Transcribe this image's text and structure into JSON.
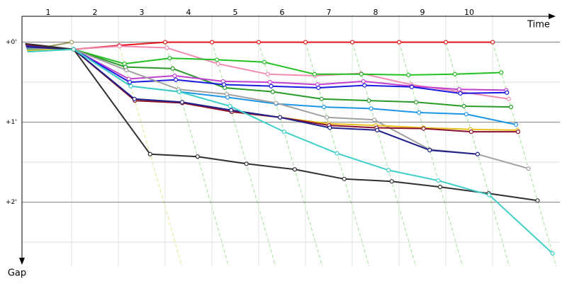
{
  "chart_data": {
    "type": "gap-line",
    "x_title": "Time",
    "y_title": "Gap",
    "x": [
      0,
      1,
      2,
      3,
      4,
      5,
      6,
      7,
      8,
      9,
      10
    ],
    "lap_labels": [
      "1",
      "2",
      "3",
      "4",
      "5",
      "6",
      "7",
      "8",
      "9",
      "10"
    ],
    "xlim": [
      -0.53,
      11.59
    ],
    "ylim": [
      -0.35,
      2.8
    ],
    "yticks": [
      {
        "value": 0,
        "label": "+0'"
      },
      {
        "value": 1,
        "label": "+1'"
      },
      {
        "value": 2,
        "label": "+2'"
      }
    ],
    "minor_yticks": [
      0.5,
      1.5,
      2.5
    ],
    "grid": true,
    "series": [
      {
        "color": "#e8141b",
        "values": [
          0.02,
          0.09,
          0.04,
          0,
          0,
          0,
          0,
          0,
          0,
          0,
          0
        ]
      },
      {
        "color": "#9a9a5a",
        "values": [
          0.1,
          0.0,
          null,
          null,
          null,
          null,
          null,
          null,
          null,
          null,
          null
        ]
      },
      {
        "color": "#f08cb4",
        "values": [
          0.06,
          0.09,
          0.05,
          0.07,
          0.27,
          0.4,
          0.42,
          0.39,
          0.53,
          0.62,
          0.71
        ]
      },
      {
        "color": "#22c022",
        "values": [
          0.08,
          0.09,
          0.27,
          0.2,
          0.22,
          0.25,
          0.4,
          0.4,
          0.41,
          0.4,
          0.38
        ]
      },
      {
        "color": "#2a9a2a",
        "values": [
          0.11,
          0.09,
          0.31,
          0.33,
          0.57,
          0.62,
          0.71,
          0.73,
          0.75,
          0.8,
          0.81
        ]
      },
      {
        "color": "#c040d0",
        "values": [
          0.04,
          0.09,
          0.46,
          0.42,
          0.49,
          0.5,
          0.53,
          0.49,
          0.55,
          0.59,
          0.6
        ]
      },
      {
        "color": "#1a1ae0",
        "values": [
          0.05,
          0.09,
          0.5,
          0.47,
          0.53,
          0.55,
          0.57,
          0.54,
          0.56,
          0.64,
          0.63
        ]
      },
      {
        "color": "#1e96e6",
        "values": [
          0.09,
          0.09,
          0.55,
          0.62,
          0.69,
          0.77,
          0.81,
          0.83,
          0.88,
          0.9,
          1.03
        ]
      },
      {
        "color": "#a0a0a0",
        "values": [
          0.07,
          0.09,
          0.35,
          0.59,
          0.65,
          0.76,
          0.94,
          0.97,
          1.34,
          1.4,
          1.58
        ]
      },
      {
        "color": "#e8c020",
        "values": [
          0.1,
          0.09,
          0.73,
          0.76,
          0.87,
          0.94,
          1.02,
          1.04,
          1.07,
          1.09,
          1.1
        ]
      },
      {
        "color": "#8a1030",
        "values": [
          0.03,
          0.09,
          0.73,
          0.76,
          0.87,
          0.94,
          1.04,
          1.07,
          1.08,
          1.12,
          1.12
        ]
      },
      {
        "color": "#20208a",
        "values": [
          0.06,
          0.09,
          0.71,
          0.75,
          0.85,
          0.94,
          1.07,
          1.1,
          1.35,
          1.4,
          null
        ]
      },
      {
        "color": "#303030",
        "values": [
          0.02,
          0.09,
          1.4,
          1.43,
          1.52,
          1.59,
          1.71,
          1.74,
          1.81,
          1.89,
          1.98
        ]
      },
      {
        "color": "#40d0c8",
        "values": [
          0.12,
          0.09,
          0.55,
          0.62,
          0.8,
          1.12,
          1.39,
          1.6,
          1.73,
          1.91,
          2.64
        ]
      }
    ]
  }
}
